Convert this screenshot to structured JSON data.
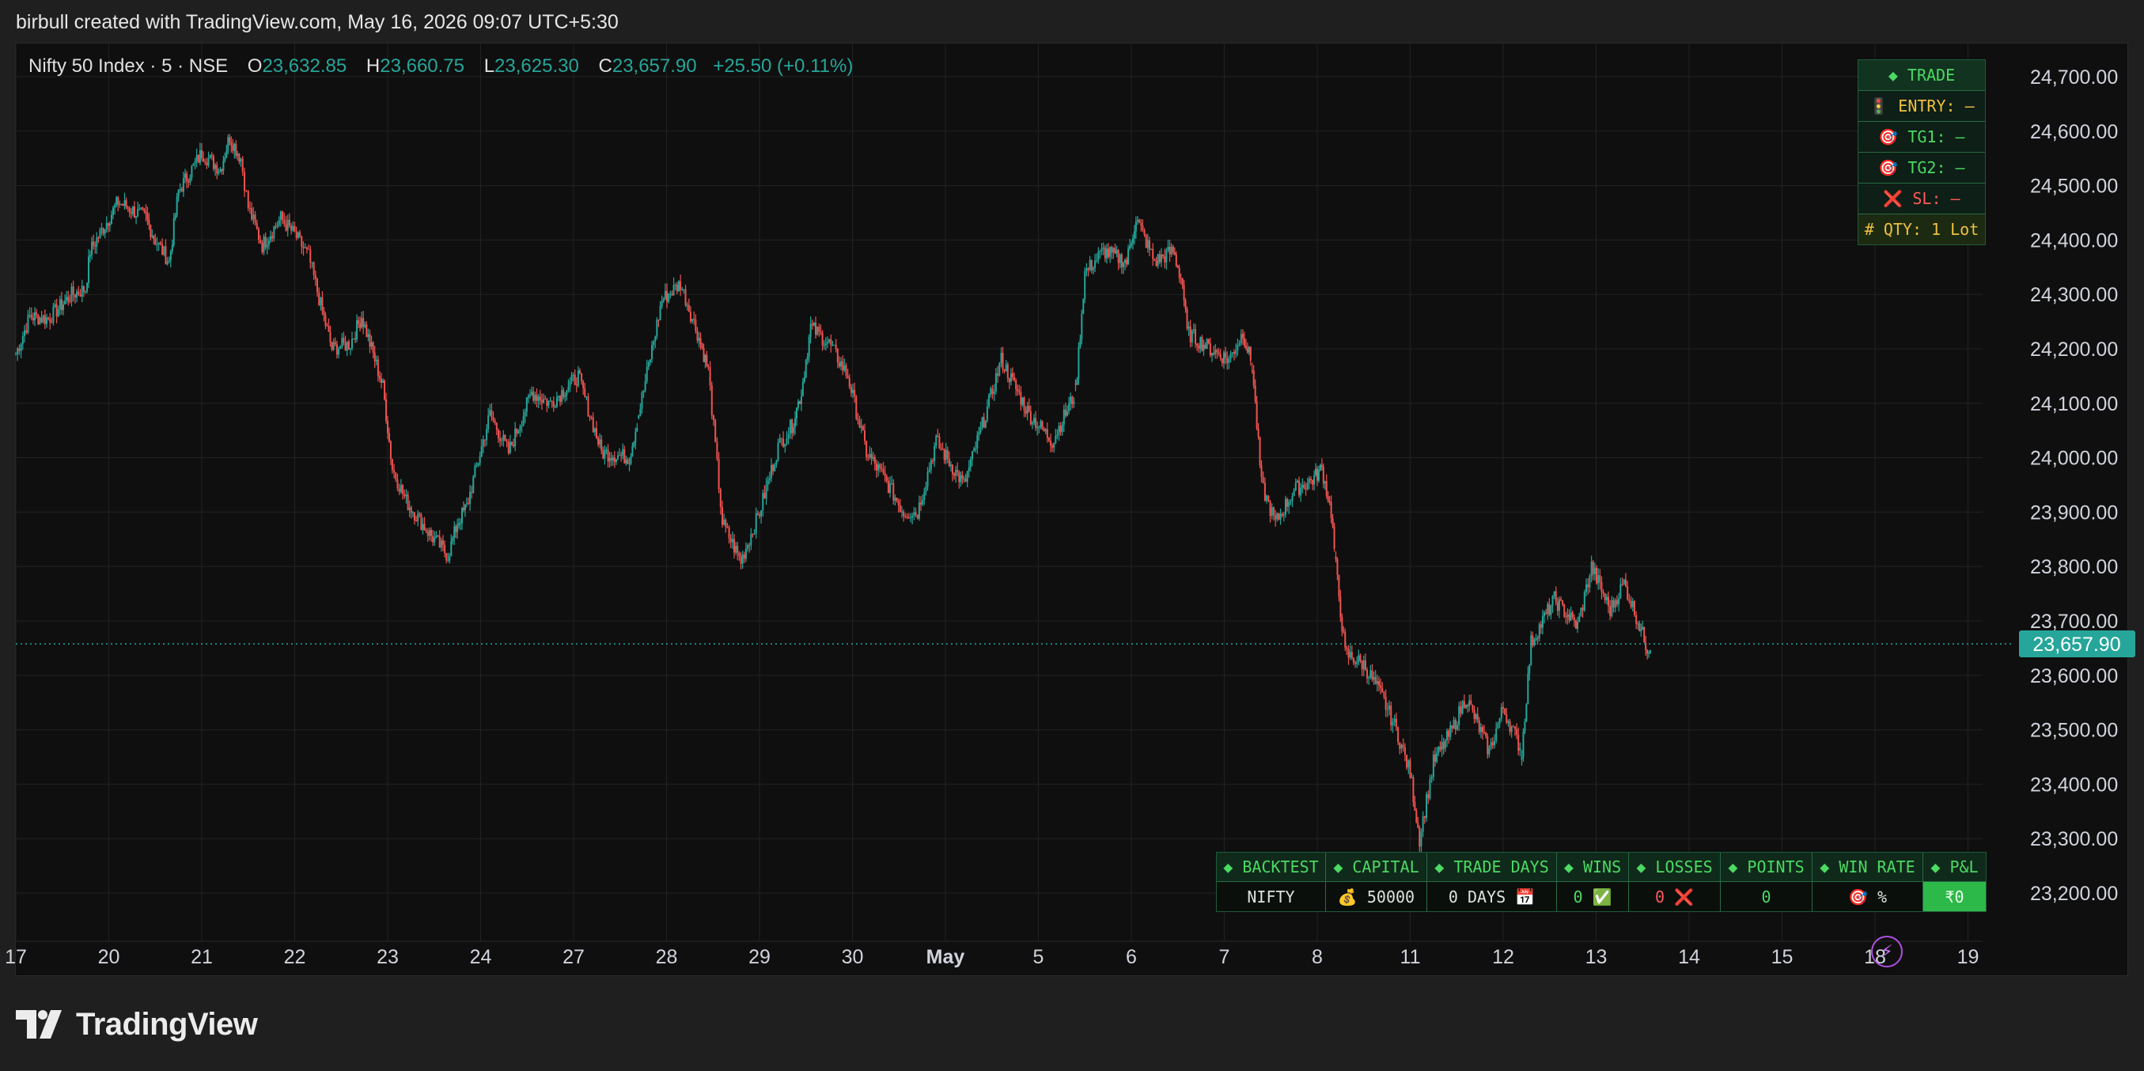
{
  "caption": "birbull created with TradingView.com, May 16, 2026 09:07 UTC+5:30",
  "legend": {
    "symbol": "Nifty 50 Index · 5 · NSE",
    "o_label": "O",
    "o_value": "23,632.85",
    "h_label": "H",
    "h_value": "23,660.75",
    "l_label": "L",
    "l_value": "23,625.30",
    "c_label": "C",
    "c_value": "23,657.90",
    "change": "+25.50 (+0.11%)"
  },
  "colors": {
    "up": "#26a69a",
    "down": "#ef5350",
    "background": "#0f0f0f",
    "grid": "#222222",
    "accent_green": "#4cd964"
  },
  "trade_panel": {
    "header": "◆  TRADE",
    "entry": "🚦 ENTRY: —",
    "tg1": "🎯 TG1: —",
    "tg2": "🎯 TG2: —",
    "sl": "❌ SL: —",
    "qty": "# QTY: 1 Lot"
  },
  "backtest": {
    "headers": [
      "◆ BACKTEST",
      "◆ CAPITAL",
      "◆ TRADE DAYS",
      "◆ WINS",
      "◆ LOSSES",
      "◆ POINTS",
      "◆ WIN RATE",
      "◆ P&L"
    ],
    "values": {
      "symbol": "NIFTY",
      "capital": "💰 50000",
      "trade_days": "0 DAYS 📅",
      "wins": "0 ✅",
      "losses": "0 ❌",
      "points": "0",
      "win_rate": "🎯 %",
      "pnl": "₹0"
    }
  },
  "logo_text": "TradingView",
  "icons": [
    "lightning-bolt-icon",
    "tradingview-logo-icon"
  ],
  "chart_data": {
    "type": "candlestick",
    "title": "Nifty 50 Index · 5 · NSE",
    "grid": true,
    "y_range": [
      23150,
      24750
    ],
    "y_ticks": [
      24700,
      24600,
      24500,
      24400,
      24300,
      24200,
      24100,
      24000,
      23900,
      23800,
      23700,
      23600,
      23500,
      23400,
      23300,
      23200
    ],
    "y_tick_labels": [
      "24,700.00",
      "24,600.00",
      "24,500.00",
      "24,400.00",
      "24,300.00",
      "24,200.00",
      "24,100.00",
      "24,000.00",
      "23,900.00",
      "23,800.00",
      "23,700.00",
      "23,600.00",
      "23,500.00",
      "23,400.00",
      "23,300.00",
      "23,200.00"
    ],
    "x_tick_labels": [
      "17",
      "20",
      "21",
      "22",
      "23",
      "24",
      "27",
      "28",
      "29",
      "30",
      "May",
      "5",
      "6",
      "7",
      "8",
      "11",
      "12",
      "13",
      "14",
      "15",
      "18",
      "19"
    ],
    "last_price": 23657.9,
    "last_price_label": "23,657.90",
    "path_points": [
      {
        "x": 0.0,
        "y": 24190
      },
      {
        "x": 0.15,
        "y": 24260
      },
      {
        "x": 0.35,
        "y": 24255
      },
      {
        "x": 0.6,
        "y": 24300
      },
      {
        "x": 0.75,
        "y": 24310
      },
      {
        "x": 0.8,
        "y": 24380
      },
      {
        "x": 1.1,
        "y": 24470
      },
      {
        "x": 1.4,
        "y": 24440
      },
      {
        "x": 1.5,
        "y": 24400
      },
      {
        "x": 1.65,
        "y": 24360
      },
      {
        "x": 1.75,
        "y": 24490
      },
      {
        "x": 2.0,
        "y": 24560
      },
      {
        "x": 2.2,
        "y": 24530
      },
      {
        "x": 2.3,
        "y": 24590
      },
      {
        "x": 2.42,
        "y": 24550
      },
      {
        "x": 2.5,
        "y": 24460
      },
      {
        "x": 2.65,
        "y": 24390
      },
      {
        "x": 2.85,
        "y": 24440
      },
      {
        "x": 3.0,
        "y": 24410
      },
      {
        "x": 3.15,
        "y": 24370
      },
      {
        "x": 3.28,
        "y": 24280
      },
      {
        "x": 3.4,
        "y": 24200
      },
      {
        "x": 3.6,
        "y": 24210
      },
      {
        "x": 3.72,
        "y": 24260
      },
      {
        "x": 3.95,
        "y": 24130
      },
      {
        "x": 4.05,
        "y": 23980
      },
      {
        "x": 4.2,
        "y": 23920
      },
      {
        "x": 4.45,
        "y": 23860
      },
      {
        "x": 4.65,
        "y": 23820
      },
      {
        "x": 4.75,
        "y": 23880
      },
      {
        "x": 4.85,
        "y": 23910
      },
      {
        "x": 5.1,
        "y": 24080
      },
      {
        "x": 5.3,
        "y": 24010
      },
      {
        "x": 5.55,
        "y": 24120
      },
      {
        "x": 5.75,
        "y": 24100
      },
      {
        "x": 6.05,
        "y": 24150
      },
      {
        "x": 6.3,
        "y": 24010
      },
      {
        "x": 6.6,
        "y": 24000
      },
      {
        "x": 6.7,
        "y": 24080
      },
      {
        "x": 6.95,
        "y": 24290
      },
      {
        "x": 7.15,
        "y": 24320
      },
      {
        "x": 7.35,
        "y": 24220
      },
      {
        "x": 7.45,
        "y": 24160
      },
      {
        "x": 7.6,
        "y": 23880
      },
      {
        "x": 7.8,
        "y": 23810
      },
      {
        "x": 8.0,
        "y": 23900
      },
      {
        "x": 8.2,
        "y": 24020
      },
      {
        "x": 8.35,
        "y": 24060
      },
      {
        "x": 8.45,
        "y": 24120
      },
      {
        "x": 8.55,
        "y": 24240
      },
      {
        "x": 8.75,
        "y": 24210
      },
      {
        "x": 8.95,
        "y": 24150
      },
      {
        "x": 9.15,
        "y": 24010
      },
      {
        "x": 9.35,
        "y": 23960
      },
      {
        "x": 9.55,
        "y": 23900
      },
      {
        "x": 9.7,
        "y": 23900
      },
      {
        "x": 9.9,
        "y": 24030
      },
      {
        "x": 10.2,
        "y": 23950
      },
      {
        "x": 10.45,
        "y": 24090
      },
      {
        "x": 10.6,
        "y": 24180
      },
      {
        "x": 10.9,
        "y": 24080
      },
      {
        "x": 11.15,
        "y": 24030
      },
      {
        "x": 11.4,
        "y": 24120
      },
      {
        "x": 11.5,
        "y": 24340
      },
      {
        "x": 11.7,
        "y": 24380
      },
      {
        "x": 11.95,
        "y": 24360
      },
      {
        "x": 12.05,
        "y": 24440
      },
      {
        "x": 12.25,
        "y": 24360
      },
      {
        "x": 12.45,
        "y": 24380
      },
      {
        "x": 12.55,
        "y": 24320
      },
      {
        "x": 12.6,
        "y": 24230
      },
      {
        "x": 12.85,
        "y": 24200
      },
      {
        "x": 13.05,
        "y": 24180
      },
      {
        "x": 13.2,
        "y": 24230
      },
      {
        "x": 13.3,
        "y": 24170
      },
      {
        "x": 13.4,
        "y": 23950
      },
      {
        "x": 13.55,
        "y": 23880
      },
      {
        "x": 13.75,
        "y": 23940
      },
      {
        "x": 13.95,
        "y": 23960
      },
      {
        "x": 14.05,
        "y": 23980
      },
      {
        "x": 14.15,
        "y": 23900
      },
      {
        "x": 14.2,
        "y": 23800
      },
      {
        "x": 14.3,
        "y": 23640
      },
      {
        "x": 14.5,
        "y": 23620
      },
      {
        "x": 14.7,
        "y": 23560
      },
      {
        "x": 14.85,
        "y": 23500
      },
      {
        "x": 15.0,
        "y": 23420
      },
      {
        "x": 15.1,
        "y": 23300
      },
      {
        "x": 15.25,
        "y": 23440
      },
      {
        "x": 15.45,
        "y": 23500
      },
      {
        "x": 15.6,
        "y": 23560
      },
      {
        "x": 15.85,
        "y": 23460
      },
      {
        "x": 16.0,
        "y": 23540
      },
      {
        "x": 16.2,
        "y": 23460
      },
      {
        "x": 16.3,
        "y": 23660
      },
      {
        "x": 16.55,
        "y": 23740
      },
      {
        "x": 16.8,
        "y": 23690
      },
      {
        "x": 16.95,
        "y": 23800
      },
      {
        "x": 17.15,
        "y": 23720
      },
      {
        "x": 17.3,
        "y": 23770
      },
      {
        "x": 17.45,
        "y": 23700
      },
      {
        "x": 17.55,
        "y": 23650
      },
      {
        "x": 17.6,
        "y": 23657.9
      }
    ]
  }
}
